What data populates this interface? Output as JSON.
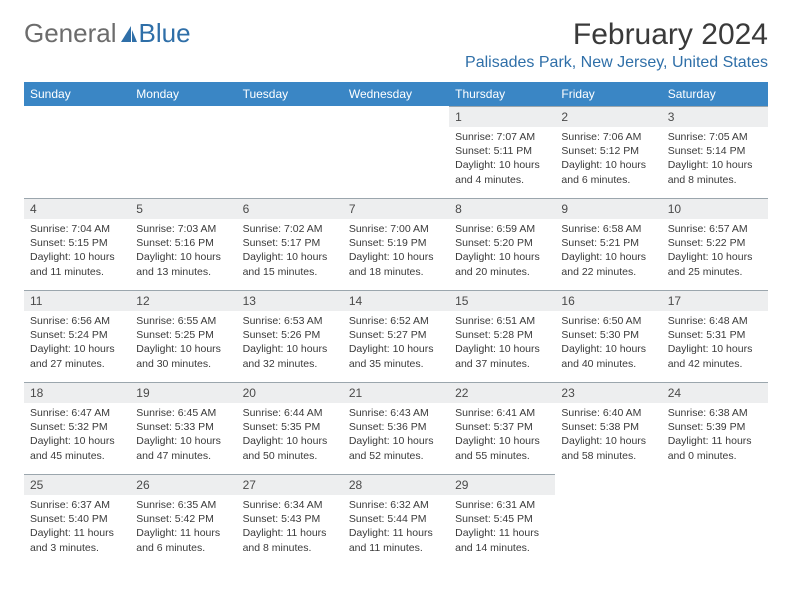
{
  "logo": {
    "text_a": "General",
    "text_b": "Blue"
  },
  "title": "February 2024",
  "location": "Palisades Park, New Jersey, United States",
  "colors": {
    "header_bg": "#3a86c5",
    "header_text": "#ffffff",
    "daynum_bg": "#edeeef",
    "daynum_border": "#9ba6ad",
    "logo_gray": "#6c6c6c",
    "logo_blue": "#2f6fa8",
    "body_text": "#3a3a3a"
  },
  "day_names": [
    "Sunday",
    "Monday",
    "Tuesday",
    "Wednesday",
    "Thursday",
    "Friday",
    "Saturday"
  ],
  "weeks": [
    [
      {
        "n": "",
        "empty": true
      },
      {
        "n": "",
        "empty": true
      },
      {
        "n": "",
        "empty": true
      },
      {
        "n": "",
        "empty": true
      },
      {
        "n": "1",
        "sr": "7:07 AM",
        "ss": "5:11 PM",
        "dl": "10 hours and 4 minutes."
      },
      {
        "n": "2",
        "sr": "7:06 AM",
        "ss": "5:12 PM",
        "dl": "10 hours and 6 minutes."
      },
      {
        "n": "3",
        "sr": "7:05 AM",
        "ss": "5:14 PM",
        "dl": "10 hours and 8 minutes."
      }
    ],
    [
      {
        "n": "4",
        "sr": "7:04 AM",
        "ss": "5:15 PM",
        "dl": "10 hours and 11 minutes."
      },
      {
        "n": "5",
        "sr": "7:03 AM",
        "ss": "5:16 PM",
        "dl": "10 hours and 13 minutes."
      },
      {
        "n": "6",
        "sr": "7:02 AM",
        "ss": "5:17 PM",
        "dl": "10 hours and 15 minutes."
      },
      {
        "n": "7",
        "sr": "7:00 AM",
        "ss": "5:19 PM",
        "dl": "10 hours and 18 minutes."
      },
      {
        "n": "8",
        "sr": "6:59 AM",
        "ss": "5:20 PM",
        "dl": "10 hours and 20 minutes."
      },
      {
        "n": "9",
        "sr": "6:58 AM",
        "ss": "5:21 PM",
        "dl": "10 hours and 22 minutes."
      },
      {
        "n": "10",
        "sr": "6:57 AM",
        "ss": "5:22 PM",
        "dl": "10 hours and 25 minutes."
      }
    ],
    [
      {
        "n": "11",
        "sr": "6:56 AM",
        "ss": "5:24 PM",
        "dl": "10 hours and 27 minutes."
      },
      {
        "n": "12",
        "sr": "6:55 AM",
        "ss": "5:25 PM",
        "dl": "10 hours and 30 minutes."
      },
      {
        "n": "13",
        "sr": "6:53 AM",
        "ss": "5:26 PM",
        "dl": "10 hours and 32 minutes."
      },
      {
        "n": "14",
        "sr": "6:52 AM",
        "ss": "5:27 PM",
        "dl": "10 hours and 35 minutes."
      },
      {
        "n": "15",
        "sr": "6:51 AM",
        "ss": "5:28 PM",
        "dl": "10 hours and 37 minutes."
      },
      {
        "n": "16",
        "sr": "6:50 AM",
        "ss": "5:30 PM",
        "dl": "10 hours and 40 minutes."
      },
      {
        "n": "17",
        "sr": "6:48 AM",
        "ss": "5:31 PM",
        "dl": "10 hours and 42 minutes."
      }
    ],
    [
      {
        "n": "18",
        "sr": "6:47 AM",
        "ss": "5:32 PM",
        "dl": "10 hours and 45 minutes."
      },
      {
        "n": "19",
        "sr": "6:45 AM",
        "ss": "5:33 PM",
        "dl": "10 hours and 47 minutes."
      },
      {
        "n": "20",
        "sr": "6:44 AM",
        "ss": "5:35 PM",
        "dl": "10 hours and 50 minutes."
      },
      {
        "n": "21",
        "sr": "6:43 AM",
        "ss": "5:36 PM",
        "dl": "10 hours and 52 minutes."
      },
      {
        "n": "22",
        "sr": "6:41 AM",
        "ss": "5:37 PM",
        "dl": "10 hours and 55 minutes."
      },
      {
        "n": "23",
        "sr": "6:40 AM",
        "ss": "5:38 PM",
        "dl": "10 hours and 58 minutes."
      },
      {
        "n": "24",
        "sr": "6:38 AM",
        "ss": "5:39 PM",
        "dl": "11 hours and 0 minutes."
      }
    ],
    [
      {
        "n": "25",
        "sr": "6:37 AM",
        "ss": "5:40 PM",
        "dl": "11 hours and 3 minutes."
      },
      {
        "n": "26",
        "sr": "6:35 AM",
        "ss": "5:42 PM",
        "dl": "11 hours and 6 minutes."
      },
      {
        "n": "27",
        "sr": "6:34 AM",
        "ss": "5:43 PM",
        "dl": "11 hours and 8 minutes."
      },
      {
        "n": "28",
        "sr": "6:32 AM",
        "ss": "5:44 PM",
        "dl": "11 hours and 11 minutes."
      },
      {
        "n": "29",
        "sr": "6:31 AM",
        "ss": "5:45 PM",
        "dl": "11 hours and 14 minutes."
      },
      {
        "n": "",
        "empty": true
      },
      {
        "n": "",
        "empty": true
      }
    ]
  ],
  "labels": {
    "sunrise": "Sunrise:",
    "sunset": "Sunset:",
    "daylight": "Daylight:"
  }
}
